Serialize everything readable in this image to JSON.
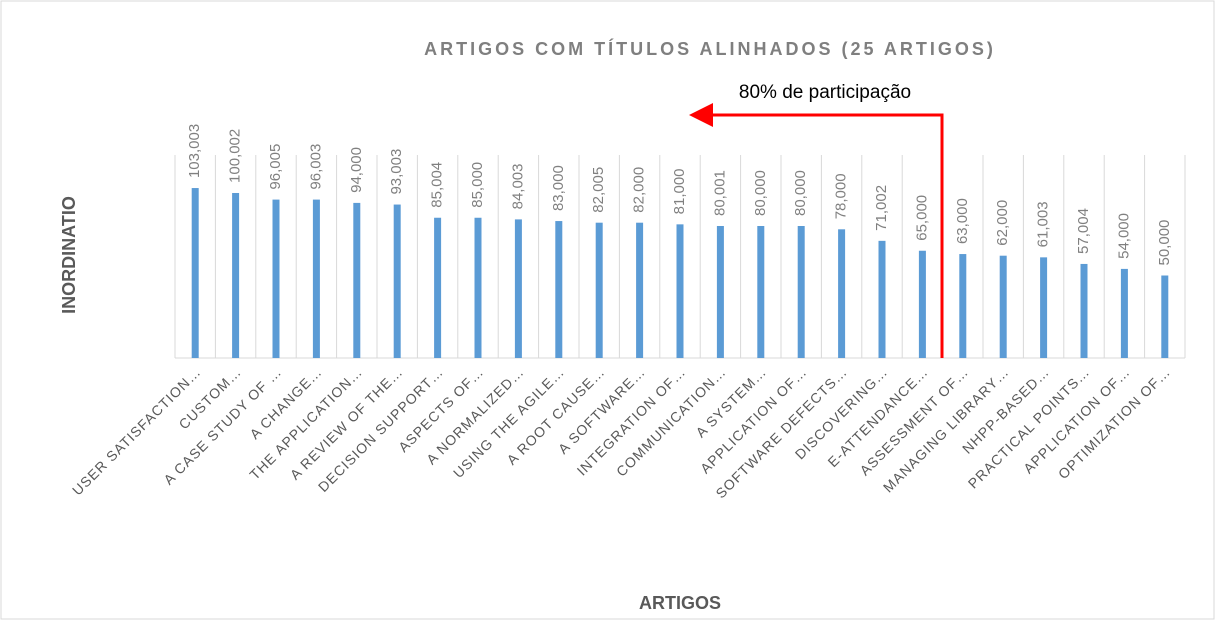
{
  "chart_data": {
    "type": "bar",
    "title": "ARTIGOS COM TÍTULOS ALINHADOS (25 ARTIGOS)",
    "y_label": "INORDINATIO",
    "x_label": "ARTIGOS",
    "annotation": "80% de participação",
    "categories": [
      "USER SATISFACTION…",
      "CUSTOM…",
      "A CASE STUDY OF …",
      "A CHANGE…",
      "THE APPLICATION…",
      "A REVIEW OF THE…",
      "DECISION SUPPORT…",
      "ASPECTS OF…",
      "A NORMALIZED…",
      "USING THE AGILE…",
      "A ROOT CAUSE…",
      "A SOFTWARE…",
      "INTEGRATION OF…",
      "COMMUNICATION…",
      "A SYSTEM…",
      "APPLICATION OF…",
      "SOFTWARE DEFECTS…",
      "DISCOVERING…",
      "E-ATTENDANCE…",
      "ASSESSMENT OF…",
      "MANAGING LIBRARY…",
      "NHPP-BASED…",
      "PRACTICAL POINTS…",
      "APPLICATION OF…",
      "OPTIMIZATION OF…"
    ],
    "values": [
      103.003,
      100.002,
      96.005,
      96.003,
      94,
      93.003,
      85.004,
      85,
      84.003,
      83,
      82.005,
      82,
      81,
      80.001,
      80,
      80,
      78,
      71.002,
      65,
      63,
      62,
      61.003,
      57.004,
      54,
      50
    ],
    "value_labels": [
      "103,003",
      "100,002",
      "96,005",
      "96,003",
      "94,000",
      "93,003",
      "85,004",
      "85,000",
      "84,003",
      "83,000",
      "82,005",
      "82,000",
      "81,000",
      "80,001",
      "80,000",
      "80,000",
      "78,000",
      "71,002",
      "65,000",
      "63,000",
      "62,000",
      "61,003",
      "57,004",
      "54,000",
      "50,000"
    ],
    "color": "#5b9bd5",
    "ylim": [
      0,
      120
    ]
  }
}
